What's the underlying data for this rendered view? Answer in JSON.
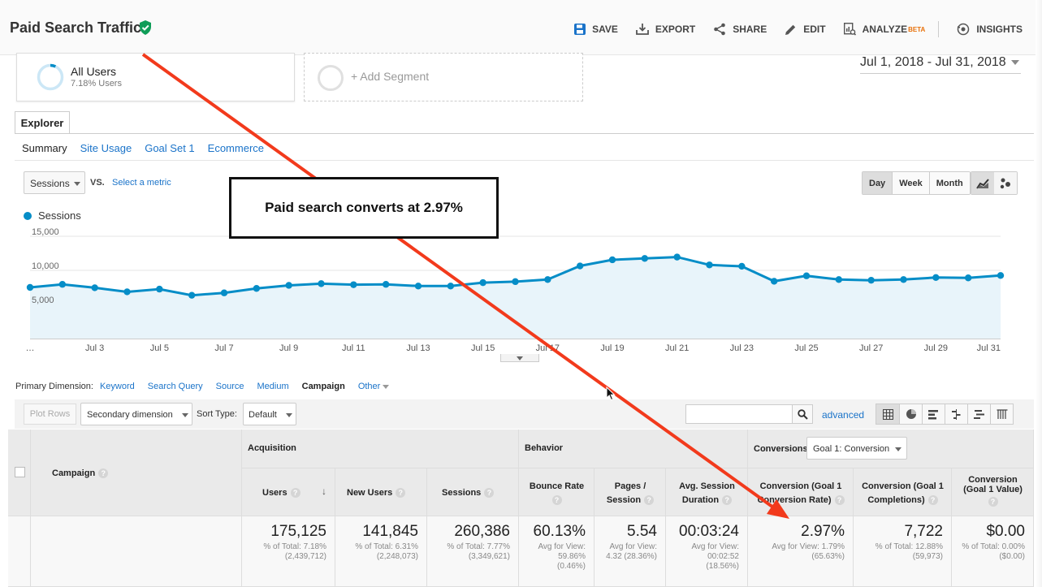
{
  "header": {
    "title": "Paid Search Traffic",
    "toolbar": {
      "save": "SAVE",
      "export": "EXPORT",
      "share": "SHARE",
      "edit": "EDIT",
      "analyze": "ANALYZE",
      "analyze_badge": "BETA",
      "insights": "INSIGHTS"
    }
  },
  "segments": {
    "all_users": {
      "name": "All Users",
      "sub": "7.18% Users",
      "share": 0.0718
    },
    "add_segment": "+ Add Segment"
  },
  "date_range": "Jul 1, 2018 - Jul 31, 2018",
  "tabs": {
    "explorer": "Explorer"
  },
  "subtabs": [
    "Summary",
    "Site Usage",
    "Goal Set 1",
    "Ecommerce"
  ],
  "chart_controls": {
    "metric": "Sessions",
    "vs": "VS.",
    "select_metric": "Select a metric",
    "periods": [
      "Day",
      "Week",
      "Month"
    ],
    "active_period": "Day"
  },
  "annotation": "Paid search converts at 2.97%",
  "chart_data": {
    "type": "area",
    "series": [
      {
        "name": "Sessions",
        "values": [
          7500,
          7950,
          7450,
          6850,
          7250,
          6350,
          6700,
          7350,
          7800,
          8050,
          7900,
          7950,
          7700,
          7700,
          8200,
          8350,
          8650,
          10650,
          11550,
          11750,
          11950,
          10800,
          10600,
          8400,
          9200,
          8650,
          8550,
          8650,
          8950,
          8900,
          9250
        ]
      }
    ],
    "x": [
      "…",
      "Jul 2",
      "Jul 3",
      "Jul 4",
      "Jul 5",
      "Jul 6",
      "Jul 7",
      "Jul 8",
      "Jul 9",
      "Jul 10",
      "Jul 11",
      "Jul 12",
      "Jul 13",
      "Jul 14",
      "Jul 15",
      "Jul 16",
      "Jul 17",
      "Jul 18",
      "Jul 19",
      "Jul 20",
      "Jul 21",
      "Jul 22",
      "Jul 23",
      "Jul 24",
      "Jul 25",
      "Jul 26",
      "Jul 27",
      "Jul 28",
      "Jul 29",
      "Jul 30",
      "Jul 31"
    ],
    "x_tick_labels": [
      "…",
      "Jul 3",
      "Jul 5",
      "Jul 7",
      "Jul 9",
      "Jul 11",
      "Jul 13",
      "Jul 15",
      "Jul 17",
      "Jul 19",
      "Jul 21",
      "Jul 23",
      "Jul 25",
      "Jul 27",
      "Jul 29",
      "Jul 31"
    ],
    "y_ticks": [
      "5,000",
      "10,000",
      "15,000"
    ],
    "ylim": [
      0,
      15000
    ],
    "grid": true,
    "color": "#058dc7",
    "fill": "#e8f4fa"
  },
  "primary_dimension": {
    "label": "Primary Dimension:",
    "options": [
      "Keyword",
      "Search Query",
      "Source",
      "Medium",
      "Campaign",
      "Other"
    ],
    "active": "Campaign"
  },
  "table_toolbar": {
    "plot_rows": "Plot Rows",
    "secondary_dimension": "Secondary dimension",
    "sort_type_label": "Sort Type:",
    "sort_type": "Default",
    "advanced": "advanced"
  },
  "table": {
    "campaign_header": "Campaign",
    "groups": {
      "acquisition": "Acquisition",
      "behavior": "Behavior",
      "conversions": "Conversions"
    },
    "conversion_goal": "Goal 1: Conversion",
    "columns": [
      {
        "label": "Users",
        "value": "175,125",
        "sub": [
          "% of Total: 7.18%",
          "(2,439,712)"
        ]
      },
      {
        "label": "New Users",
        "value": "141,845",
        "sub": [
          "% of Total: 6.31%",
          "(2,248,073)"
        ]
      },
      {
        "label": "Sessions",
        "value": "260,386",
        "sub": [
          "% of Total: 7.77%",
          "(3,349,621)"
        ]
      },
      {
        "label": "Bounce Rate",
        "value": "60.13%",
        "sub": [
          "Avg for View:",
          "59.86%",
          "(0.46%)"
        ]
      },
      {
        "label_lines": [
          "Pages /",
          "Session"
        ],
        "value": "5.54",
        "sub": [
          "Avg for View:",
          "4.32 (28.36%)"
        ]
      },
      {
        "label_lines": [
          "Avg. Session",
          "Duration"
        ],
        "value": "00:03:24",
        "sub": [
          "Avg for View:",
          "00:02:52",
          "(18.56%)"
        ]
      },
      {
        "label_lines": [
          "Conversion (Goal 1",
          "Conversion Rate)"
        ],
        "value": "2.97%",
        "sub": [
          "Avg for View: 1.79%",
          "(65.63%)"
        ]
      },
      {
        "label_lines": [
          "Conversion (Goal 1",
          "Completions)"
        ],
        "value": "7,722",
        "sub": [
          "% of Total: 12.88%",
          "(59,973)"
        ]
      },
      {
        "label_lines": [
          "Conversion",
          "(Goal 1 Value)"
        ],
        "value": "$0.00",
        "sub": [
          "% of Total: 0.00%",
          "($0.00)"
        ]
      }
    ]
  }
}
